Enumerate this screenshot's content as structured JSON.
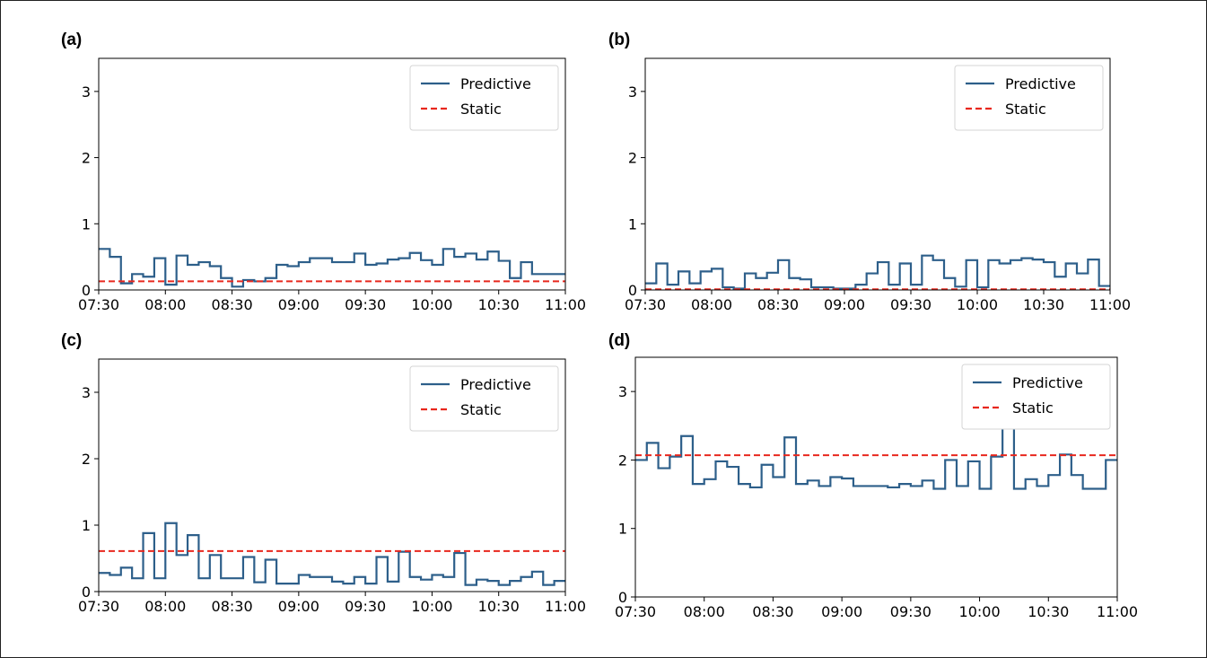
{
  "colors": {
    "predictive": "#2d5f8a",
    "static": "#e8281e"
  },
  "chart_data": [
    {
      "type": "line",
      "panel_label": "(a)",
      "x_tick_labels": [
        "07:30",
        "08:00",
        "08:30",
        "09:00",
        "09:30",
        "10:00",
        "10:30",
        "11:00"
      ],
      "y_tick_labels": [
        "0",
        "1",
        "2",
        "3"
      ],
      "ylim": [
        0,
        3.5
      ],
      "xlim": [
        0,
        210
      ],
      "legend": {
        "entries": [
          "Predictive",
          "Static"
        ],
        "location": "top-right"
      },
      "series": [
        {
          "name": "Predictive",
          "style": "solid step",
          "x": [
            0,
            5,
            10,
            15,
            20,
            25,
            30,
            35,
            40,
            45,
            50,
            55,
            60,
            65,
            70,
            75,
            80,
            85,
            90,
            95,
            100,
            105,
            110,
            115,
            120,
            125,
            130,
            135,
            140,
            145,
            150,
            155,
            160,
            165,
            170,
            175,
            180,
            185,
            190,
            195,
            200,
            205
          ],
          "values": [
            0.62,
            0.5,
            0.1,
            0.24,
            0.2,
            0.48,
            0.08,
            0.52,
            0.38,
            0.42,
            0.36,
            0.18,
            0.05,
            0.15,
            0.13,
            0.18,
            0.38,
            0.36,
            0.42,
            0.48,
            0.48,
            0.42,
            0.42,
            0.55,
            0.38,
            0.4,
            0.46,
            0.48,
            0.56,
            0.45,
            0.38,
            0.62,
            0.5,
            0.55,
            0.46,
            0.58,
            0.44,
            0.18,
            0.42,
            0.24,
            0.24,
            0.24
          ]
        },
        {
          "name": "Static",
          "style": "dashed",
          "x": [
            0,
            210
          ],
          "values": [
            0.13,
            0.13
          ]
        }
      ]
    },
    {
      "type": "line",
      "panel_label": "(b)",
      "x_tick_labels": [
        "07:30",
        "08:00",
        "08:30",
        "09:00",
        "09:30",
        "10:00",
        "10:30",
        "11:00"
      ],
      "y_tick_labels": [
        "0",
        "1",
        "2",
        "3"
      ],
      "ylim": [
        0,
        3.5
      ],
      "xlim": [
        0,
        210
      ],
      "legend": {
        "entries": [
          "Predictive",
          "Static"
        ],
        "location": "top-right"
      },
      "series": [
        {
          "name": "Predictive",
          "style": "solid step",
          "x": [
            0,
            5,
            10,
            15,
            20,
            25,
            30,
            35,
            40,
            45,
            50,
            55,
            60,
            65,
            70,
            75,
            80,
            85,
            90,
            95,
            100,
            105,
            110,
            115,
            120,
            125,
            130,
            135,
            140,
            145,
            150,
            155,
            160,
            165,
            170,
            175,
            180,
            185,
            190,
            195,
            200,
            205
          ],
          "values": [
            0.1,
            0.4,
            0.08,
            0.28,
            0.1,
            0.28,
            0.32,
            0.04,
            0.02,
            0.25,
            0.18,
            0.26,
            0.45,
            0.18,
            0.16,
            0.04,
            0.04,
            0.02,
            0.02,
            0.08,
            0.25,
            0.42,
            0.08,
            0.4,
            0.08,
            0.52,
            0.45,
            0.18,
            0.05,
            0.45,
            0.04,
            0.45,
            0.4,
            0.45,
            0.48,
            0.46,
            0.42,
            0.2,
            0.4,
            0.25,
            0.46,
            0.06
          ]
        },
        {
          "name": "Static",
          "style": "dashed",
          "x": [
            0,
            210
          ],
          "values": [
            0.01,
            0.01
          ]
        }
      ]
    },
    {
      "type": "line",
      "panel_label": "(c)",
      "x_tick_labels": [
        "07:30",
        "08:00",
        "08:30",
        "09:00",
        "09:30",
        "10:00",
        "10:30",
        "11:00"
      ],
      "y_tick_labels": [
        "0",
        "1",
        "2",
        "3"
      ],
      "ylim": [
        0,
        3.5
      ],
      "xlim": [
        0,
        210
      ],
      "legend": {
        "entries": [
          "Predictive",
          "Static"
        ],
        "location": "top-right"
      },
      "series": [
        {
          "name": "Predictive",
          "style": "solid step",
          "x": [
            0,
            5,
            10,
            15,
            20,
            25,
            30,
            35,
            40,
            45,
            50,
            55,
            60,
            65,
            70,
            75,
            80,
            85,
            90,
            95,
            100,
            105,
            110,
            115,
            120,
            125,
            130,
            135,
            140,
            145,
            150,
            155,
            160,
            165,
            170,
            175,
            180,
            185,
            190,
            195,
            200,
            205
          ],
          "values": [
            0.28,
            0.25,
            0.36,
            0.2,
            0.88,
            0.2,
            1.03,
            0.55,
            0.85,
            0.2,
            0.55,
            0.2,
            0.2,
            0.52,
            0.14,
            0.48,
            0.12,
            0.12,
            0.25,
            0.22,
            0.22,
            0.15,
            0.12,
            0.22,
            0.12,
            0.52,
            0.15,
            0.6,
            0.22,
            0.18,
            0.25,
            0.22,
            0.58,
            0.1,
            0.18,
            0.16,
            0.1,
            0.16,
            0.22,
            0.3,
            0.1,
            0.16
          ]
        },
        {
          "name": "Static",
          "style": "dashed",
          "x": [
            0,
            210
          ],
          "values": [
            0.61,
            0.61
          ]
        }
      ]
    },
    {
      "type": "line",
      "panel_label": "(d)",
      "x_tick_labels": [
        "07:30",
        "08:00",
        "08:30",
        "09:00",
        "09:30",
        "10:00",
        "10:30",
        "11:00"
      ],
      "y_tick_labels": [
        "0",
        "1",
        "2",
        "3"
      ],
      "ylim": [
        0,
        3.5
      ],
      "xlim": [
        0,
        210
      ],
      "legend": {
        "entries": [
          "Predictive",
          "Static"
        ],
        "location": "top-right"
      },
      "series": [
        {
          "name": "Predictive",
          "style": "solid step",
          "x": [
            0,
            5,
            10,
            15,
            20,
            25,
            30,
            35,
            40,
            45,
            50,
            55,
            60,
            65,
            70,
            75,
            80,
            85,
            90,
            95,
            100,
            105,
            110,
            115,
            120,
            125,
            130,
            135,
            140,
            145,
            150,
            155,
            160,
            165,
            170,
            175,
            180,
            185,
            190,
            195,
            200,
            205
          ],
          "values": [
            2.0,
            2.25,
            1.88,
            2.05,
            2.35,
            1.65,
            1.72,
            1.98,
            1.9,
            1.65,
            1.6,
            1.93,
            1.75,
            2.33,
            1.65,
            1.7,
            1.62,
            1.75,
            1.73,
            1.62,
            1.62,
            1.62,
            1.6,
            1.65,
            1.62,
            1.7,
            1.58,
            2.0,
            1.62,
            1.98,
            1.58,
            2.05,
            2.55,
            1.58,
            1.72,
            1.62,
            1.78,
            2.08,
            1.78,
            1.58,
            1.58,
            2.0
          ]
        },
        {
          "name": "Static",
          "style": "dashed",
          "x": [
            0,
            210
          ],
          "values": [
            2.07,
            2.07
          ]
        }
      ]
    }
  ]
}
